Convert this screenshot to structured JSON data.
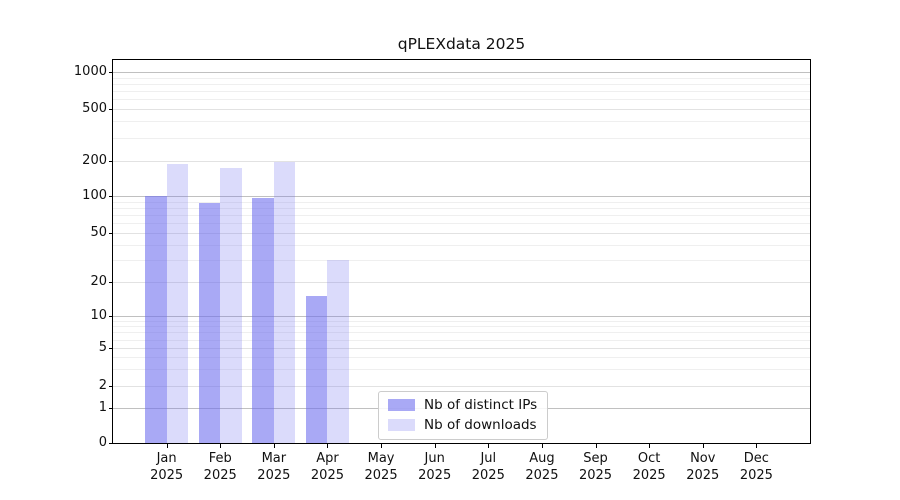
{
  "figure": {
    "title": "qPLEXdata 2025"
  },
  "chart_data": {
    "type": "bar",
    "title": "qPLEXdata 2025",
    "yscale": "symlog",
    "grid": "both",
    "ylim": [
      0,
      1300
    ],
    "y_ticks": [
      0,
      1,
      2,
      5,
      10,
      20,
      50,
      100,
      200,
      500,
      1000
    ],
    "categories": [
      {
        "month": "Jan",
        "year": "2025"
      },
      {
        "month": "Feb",
        "year": "2025"
      },
      {
        "month": "Mar",
        "year": "2025"
      },
      {
        "month": "Apr",
        "year": "2025"
      },
      {
        "month": "May",
        "year": "2025"
      },
      {
        "month": "Jun",
        "year": "2025"
      },
      {
        "month": "Jul",
        "year": "2025"
      },
      {
        "month": "Aug",
        "year": "2025"
      },
      {
        "month": "Sep",
        "year": "2025"
      },
      {
        "month": "Oct",
        "year": "2025"
      },
      {
        "month": "Nov",
        "year": "2025"
      },
      {
        "month": "Dec",
        "year": "2025"
      }
    ],
    "series": [
      {
        "name": "Nb of distinct IPs",
        "color": "#aaaaf0",
        "fill": "rgba(106,106,238,0.58)",
        "values": [
          100,
          88,
          96,
          15,
          0,
          0,
          0,
          0,
          0,
          0,
          0,
          0
        ]
      },
      {
        "name": "Nb of downloads",
        "color": "#dcdcf8",
        "fill": "rgba(106,106,238,0.24)",
        "values": [
          190,
          175,
          195,
          30,
          0,
          0,
          0,
          0,
          0,
          0,
          0,
          0
        ]
      }
    ],
    "legend_position": "lower center"
  },
  "grid_colors": {
    "major": "#c0c0c0",
    "labeled_minor": "#e2e2e2",
    "minor": "#efefef"
  }
}
